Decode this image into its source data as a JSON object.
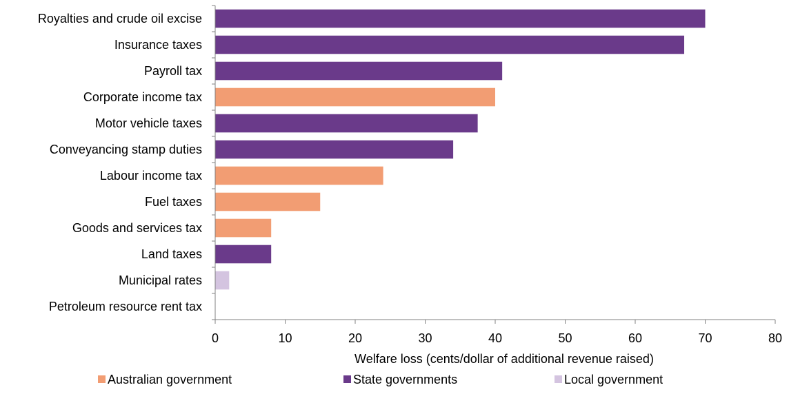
{
  "chart_data": {
    "type": "bar",
    "orientation": "horizontal",
    "title": "",
    "xlabel": "Welfare loss (cents/dollar of additional revenue raised)",
    "ylabel": "",
    "xlim": [
      0,
      80
    ],
    "x_ticks": [
      0,
      10,
      20,
      30,
      40,
      50,
      60,
      70,
      80
    ],
    "grid": false,
    "legend_position": "bottom",
    "categories": [
      "Royalties and crude oil excise",
      "Insurance taxes",
      "Payroll tax",
      "Corporate income tax",
      "Motor vehicle taxes",
      "Conveyancing stamp duties",
      "Labour income tax",
      "Fuel taxes",
      "Goods and services tax",
      "Land taxes",
      "Municipal rates",
      "Petroleum resource rent tax"
    ],
    "values": [
      70,
      67,
      41,
      40,
      37.5,
      34,
      24,
      15,
      8,
      8,
      2,
      0
    ],
    "bar_groups": [
      "State governments",
      "State governments",
      "State governments",
      "Australian government",
      "State governments",
      "State governments",
      "Australian government",
      "Australian government",
      "Australian government",
      "State governments",
      "Local government",
      "Australian government"
    ],
    "legend": [
      {
        "name": "Australian government",
        "color": "#f29d73"
      },
      {
        "name": "State governments",
        "color": "#6a3a8a"
      },
      {
        "name": "Local government",
        "color": "#d4c4e0"
      }
    ]
  }
}
